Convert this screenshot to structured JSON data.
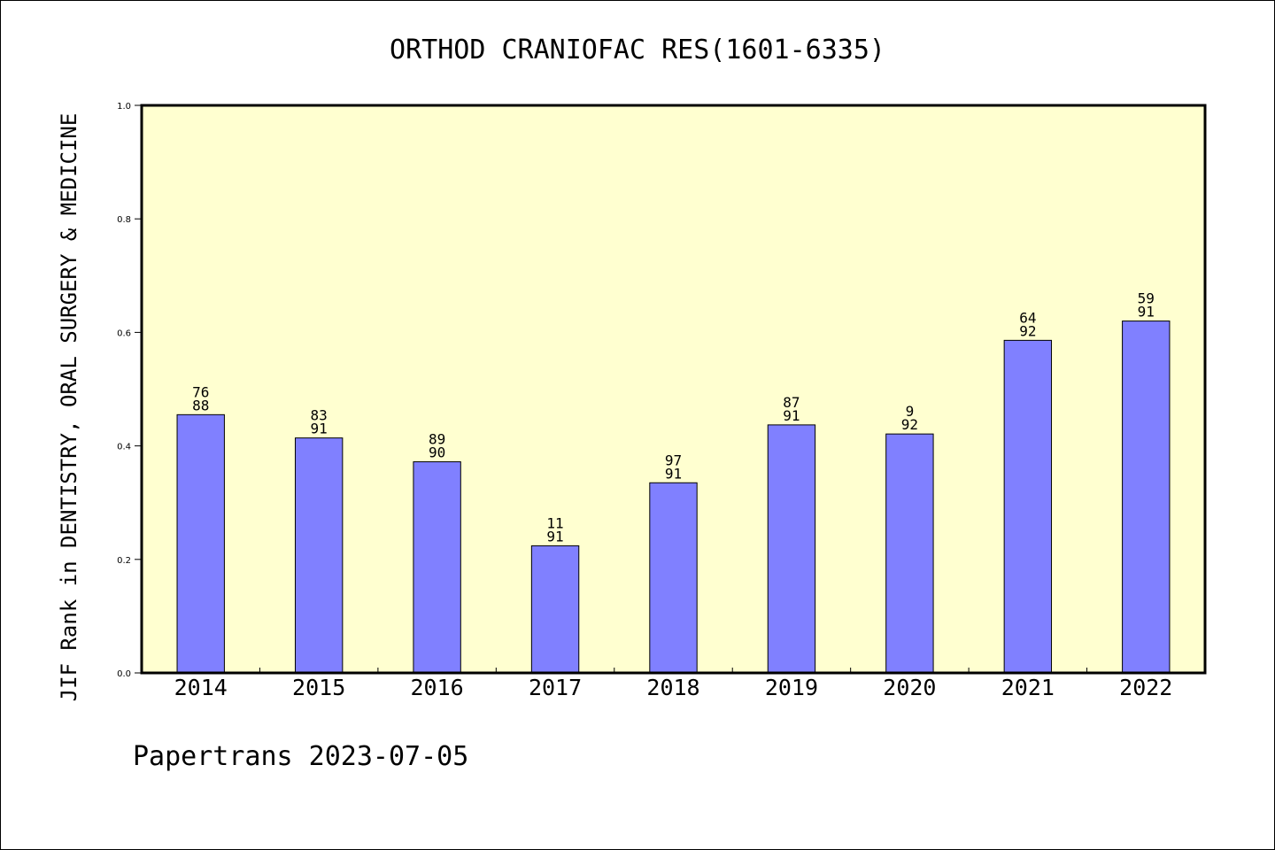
{
  "chart_data": {
    "type": "bar",
    "title": "ORTHOD CRANIOFAC RES(1601-6335)",
    "ylabel": "JIF Rank in DENTISTRY, ORAL SURGERY & MEDICINE",
    "xlabel": "",
    "ylim": [
      0.0,
      1.0
    ],
    "yticks": [
      "0.0",
      "0.2",
      "0.4",
      "0.6",
      "0.8",
      "1.0"
    ],
    "grid": false,
    "categories": [
      "2014",
      "2015",
      "2016",
      "2017",
      "2018",
      "2019",
      "2020",
      "2021",
      "2022"
    ],
    "values": [
      0.455,
      0.414,
      0.372,
      0.224,
      0.335,
      0.437,
      0.421,
      0.586,
      0.62
    ],
    "labels_top": [
      "76",
      "83",
      "89",
      "11",
      "97",
      "87",
      "9",
      "64",
      "59"
    ],
    "labels_bottom": [
      "88",
      "91",
      "90",
      "91",
      "91",
      "91",
      "92",
      "92",
      "91"
    ],
    "colors": {
      "plot_background": "#ffffd0",
      "bar_fill": "#8080ff",
      "bar_stroke": "#000000"
    }
  },
  "footer": {
    "text": "Papertrans 2023-07-05"
  }
}
